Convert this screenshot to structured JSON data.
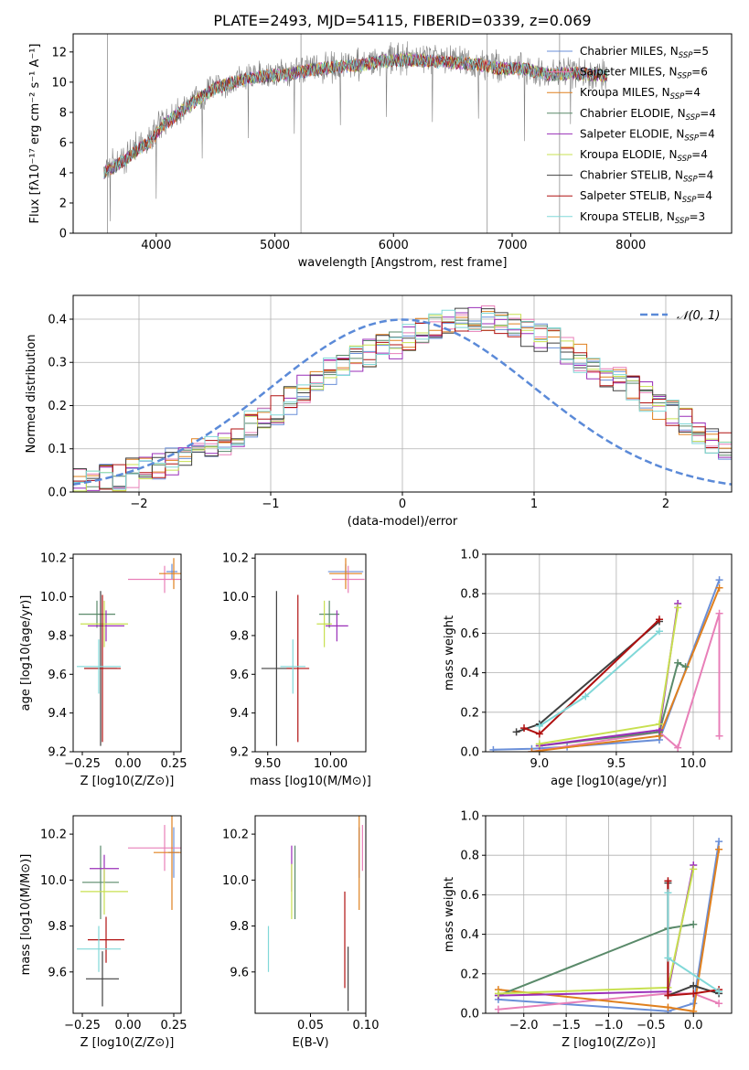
{
  "title": "PLATE=2493, MJD=54115, FIBERID=0339, z=0.069",
  "colors": {
    "chabrier_miles": "#6a8fd8",
    "salpeter_miles": "#e87fb8",
    "kroupa_miles": "#e0801e",
    "chabrier_elodie": "#5a8a6a",
    "salpeter_elodie": "#9a2fb8",
    "kroupa_elodie": "#c8e050",
    "chabrier_stelib": "#404040",
    "salpeter_stelib": "#b01010",
    "kroupa_stelib": "#80d8d8",
    "data": "#808080",
    "normal": "#5b8ad8"
  },
  "chart_data": [
    {
      "id": "spectrum",
      "type": "line",
      "xlabel": "wavelength [Angstrom, rest frame]",
      "ylabel": "Flux [fλ10⁻¹⁷ erg cm⁻² s⁻¹ A⁻¹]",
      "xlim": [
        3300,
        8850
      ],
      "ylim": [
        0,
        13.2
      ],
      "xticks": [
        4000,
        5000,
        6000,
        7000,
        8000
      ],
      "yticks": [
        0,
        2,
        4,
        6,
        8,
        10,
        12
      ],
      "legend_position": "right",
      "legend": [
        "Chabrier MILES, NSSP=5",
        "Salpeter MILES, NSSP=6",
        "Kroupa MILES, NSSP=4",
        "Chabrier ELODIE, NSSP=4",
        "Salpeter ELODIE, NSSP=4",
        "Kroupa ELODIE, NSSP=4",
        "Chabrier STELIB, NSSP=4",
        "Salpeter STELIB, NSSP=4",
        "Kroupa STELIB, NSSP=3"
      ],
      "data_curve": [
        [
          3560,
          4.2
        ],
        [
          3650,
          4.6
        ],
        [
          3750,
          5.0
        ],
        [
          3850,
          5.8
        ],
        [
          3950,
          6.2
        ],
        [
          4050,
          7.3
        ],
        [
          4200,
          8.1
        ],
        [
          4300,
          8.7
        ],
        [
          4500,
          9.7
        ],
        [
          4700,
          10.2
        ],
        [
          4900,
          10.5
        ],
        [
          5100,
          10.5
        ],
        [
          5300,
          10.9
        ],
        [
          5500,
          11.0
        ],
        [
          5700,
          11.2
        ],
        [
          5900,
          11.5
        ],
        [
          6100,
          11.6
        ],
        [
          6300,
          11.5
        ],
        [
          6500,
          11.4
        ],
        [
          6700,
          11.3
        ],
        [
          6900,
          11.0
        ],
        [
          7100,
          11.0
        ],
        [
          7300,
          10.6
        ],
        [
          7500,
          10.7
        ],
        [
          7700,
          10.6
        ],
        [
          7800,
          10.5
        ]
      ],
      "model_curve": [
        [
          3560,
          4.0
        ],
        [
          3650,
          4.4
        ],
        [
          3750,
          4.9
        ],
        [
          3850,
          5.6
        ],
        [
          3950,
          6.0
        ],
        [
          4050,
          7.1
        ],
        [
          4200,
          8.0
        ],
        [
          4300,
          8.6
        ],
        [
          4500,
          9.6
        ],
        [
          4700,
          10.1
        ],
        [
          4900,
          10.4
        ],
        [
          5100,
          10.5
        ],
        [
          5300,
          10.8
        ],
        [
          5500,
          11.0
        ],
        [
          5700,
          11.1
        ],
        [
          5900,
          11.4
        ],
        [
          6100,
          11.5
        ],
        [
          6300,
          11.4
        ],
        [
          6500,
          11.3
        ],
        [
          6700,
          11.2
        ],
        [
          6900,
          10.9
        ],
        [
          7100,
          10.9
        ],
        [
          7300,
          10.5
        ],
        [
          7500,
          10.6
        ],
        [
          7700,
          10.5
        ],
        [
          7800,
          10.4
        ]
      ]
    },
    {
      "id": "residuals",
      "type": "bar",
      "xlabel": "(data-model)/error",
      "ylabel": "Normed distribution",
      "xlim": [
        -2.5,
        2.5
      ],
      "ylim": [
        0,
        0.455
      ],
      "xticks": [
        -2,
        -1,
        0,
        1,
        2
      ],
      "yticks": [
        0.0,
        0.1,
        0.2,
        0.3,
        0.4
      ],
      "grid": true,
      "legend": [
        "𝒩(0, 1)"
      ],
      "bin_width": 0.1,
      "bin_start": -2.5,
      "hist_base": [
        0.02,
        0.025,
        0.03,
        0.035,
        0.045,
        0.05,
        0.06,
        0.07,
        0.08,
        0.09,
        0.105,
        0.12,
        0.14,
        0.16,
        0.175,
        0.19,
        0.21,
        0.24,
        0.26,
        0.275,
        0.29,
        0.305,
        0.32,
        0.33,
        0.34,
        0.355,
        0.37,
        0.385,
        0.39,
        0.395,
        0.4,
        0.4,
        0.39,
        0.38,
        0.37,
        0.36,
        0.345,
        0.33,
        0.31,
        0.29,
        0.275,
        0.255,
        0.24,
        0.22,
        0.2,
        0.18,
        0.16,
        0.14,
        0.12,
        0.105,
        0.09,
        0.075,
        0.065,
        0.055,
        0.045,
        0.04,
        0.035,
        0.03,
        0.025,
        0.022
      ]
    },
    {
      "id": "age-vs-Z",
      "type": "scatter",
      "xlabel": "Z [log10(Z/Z⊙)]",
      "ylabel": "age [log10(age/yr)]",
      "xlim": [
        -0.3,
        0.29
      ],
      "ylim": [
        9.2,
        10.22
      ],
      "xticks": [
        -0.25,
        0.0,
        0.25
      ],
      "yticks": [
        9.2,
        9.4,
        9.6,
        9.8,
        10.0,
        10.2
      ],
      "points": [
        {
          "s": "chabrier_miles",
          "x": 0.24,
          "y": 10.13,
          "ex": 0.03,
          "ey": 0.04
        },
        {
          "s": "salpeter_miles",
          "x": 0.2,
          "y": 10.09,
          "ex": 0.2,
          "ey": 0.07
        },
        {
          "s": "kroupa_miles",
          "x": 0.25,
          "y": 10.12,
          "ex": 0.08,
          "ey": 0.08
        },
        {
          "s": "chabrier_elodie",
          "x": -0.17,
          "y": 9.91,
          "ex": 0.1,
          "ey": 0.07
        },
        {
          "s": "salpeter_elodie",
          "x": -0.12,
          "y": 9.85,
          "ex": 0.1,
          "ey": 0.08
        },
        {
          "s": "kroupa_elodie",
          "x": -0.13,
          "y": 9.86,
          "ex": 0.13,
          "ey": 0.12
        },
        {
          "s": "chabrier_stelib",
          "x": -0.15,
          "y": 9.63,
          "ex": 0.09,
          "ey": 0.4
        },
        {
          "s": "salpeter_stelib",
          "x": -0.14,
          "y": 9.63,
          "ex": 0.1,
          "ey": 0.38
        },
        {
          "s": "kroupa_stelib",
          "x": -0.16,
          "y": 9.64,
          "ex": 0.12,
          "ey": 0.14
        }
      ]
    },
    {
      "id": "age-vs-mass",
      "type": "scatter",
      "xlabel": "mass [log10(M/M⊙)]",
      "ylabel": "",
      "xlim": [
        9.4,
        10.28
      ],
      "ylim": [
        9.2,
        10.22
      ],
      "xticks": [
        9.5,
        10.0
      ],
      "yticks": [
        9.2,
        9.4,
        9.6,
        9.8,
        10.0,
        10.2
      ],
      "points": [
        {
          "s": "chabrier_miles",
          "x": 10.12,
          "y": 10.13,
          "ex": 0.14,
          "ey": 0.04
        },
        {
          "s": "salpeter_miles",
          "x": 10.14,
          "y": 10.09,
          "ex": 0.13,
          "ey": 0.07
        },
        {
          "s": "kroupa_miles",
          "x": 10.12,
          "y": 10.12,
          "ex": 0.13,
          "ey": 0.08
        },
        {
          "s": "chabrier_elodie",
          "x": 9.99,
          "y": 9.91,
          "ex": 0.08,
          "ey": 0.07
        },
        {
          "s": "salpeter_elodie",
          "x": 10.05,
          "y": 9.85,
          "ex": 0.09,
          "ey": 0.08
        },
        {
          "s": "kroupa_elodie",
          "x": 9.95,
          "y": 9.86,
          "ex": 0.06,
          "ey": 0.12
        },
        {
          "s": "chabrier_stelib",
          "x": 9.57,
          "y": 9.63,
          "ex": 0.12,
          "ey": 0.4
        },
        {
          "s": "salpeter_stelib",
          "x": 9.74,
          "y": 9.63,
          "ex": 0.09,
          "ey": 0.38
        },
        {
          "s": "kroupa_stelib",
          "x": 9.7,
          "y": 9.64,
          "ex": 0.1,
          "ey": 0.14
        }
      ]
    },
    {
      "id": "weight-vs-age",
      "type": "line",
      "xlabel": "age [log10(age/yr)]",
      "ylabel": "mass weight",
      "xlim": [
        8.65,
        10.25
      ],
      "ylim": [
        0,
        1.0
      ],
      "xticks": [
        9.0,
        9.5,
        10.0
      ],
      "yticks": [
        0.0,
        0.2,
        0.4,
        0.6,
        0.8,
        1.0
      ],
      "grid": true,
      "series": [
        {
          "s": "chabrier_miles",
          "x": [
            8.7,
            8.95,
            9.18,
            9.78,
            10.17
          ],
          "y": [
            0.01,
            0.015,
            0.025,
            0.06,
            0.87
          ]
        },
        {
          "s": "salpeter_miles",
          "x": [
            8.95,
            9.78,
            9.9,
            10.17,
            10.17
          ],
          "y": [
            0.0,
            0.1,
            0.02,
            0.7,
            0.08
          ]
        },
        {
          "s": "kroupa_miles",
          "x": [
            8.95,
            9.78,
            10.17
          ],
          "y": [
            0.0,
            0.08,
            0.83
          ]
        },
        {
          "s": "chabrier_elodie",
          "x": [
            9.0,
            9.78,
            9.9,
            9.95
          ],
          "y": [
            0.03,
            0.1,
            0.45,
            0.43
          ]
        },
        {
          "s": "salpeter_elodie",
          "x": [
            9.0,
            9.78,
            9.9
          ],
          "y": [
            0.03,
            0.11,
            0.75
          ]
        },
        {
          "s": "kroupa_elodie",
          "x": [
            9.0,
            9.78,
            9.9
          ],
          "y": [
            0.04,
            0.14,
            0.73
          ]
        },
        {
          "s": "chabrier_stelib",
          "x": [
            8.85,
            9.0,
            9.78
          ],
          "y": [
            0.1,
            0.14,
            0.66
          ]
        },
        {
          "s": "salpeter_stelib",
          "x": [
            8.9,
            9.0,
            9.78
          ],
          "y": [
            0.12,
            0.09,
            0.67
          ]
        },
        {
          "s": "kroupa_stelib",
          "x": [
            9.0,
            9.3,
            9.78
          ],
          "y": [
            0.13,
            0.28,
            0.61
          ]
        }
      ]
    },
    {
      "id": "mass-vs-Z",
      "type": "scatter",
      "xlabel": "Z [log10(Z/Z⊙)]",
      "ylabel": "mass [log10(M/M⊙)]",
      "xlim": [
        -0.3,
        0.29
      ],
      "ylim": [
        9.42,
        10.28
      ],
      "xticks": [
        -0.25,
        0.0,
        0.25
      ],
      "yticks": [
        9.6,
        9.8,
        10.0,
        10.2
      ],
      "points": [
        {
          "s": "chabrier_miles",
          "x": 0.25,
          "y": 10.12,
          "ex": 0.03,
          "ey": 0.11
        },
        {
          "s": "salpeter_miles",
          "x": 0.2,
          "y": 10.14,
          "ex": 0.2,
          "ey": 0.1
        },
        {
          "s": "kroupa_miles",
          "x": 0.24,
          "y": 10.12,
          "ex": 0.1,
          "ey": 0.25
        },
        {
          "s": "chabrier_elodie",
          "x": -0.15,
          "y": 9.99,
          "ex": 0.1,
          "ey": 0.16
        },
        {
          "s": "salpeter_elodie",
          "x": -0.13,
          "y": 10.05,
          "ex": 0.08,
          "ey": 0.06
        },
        {
          "s": "kroupa_elodie",
          "x": -0.13,
          "y": 9.95,
          "ex": 0.13,
          "ey": 0.1
        },
        {
          "s": "chabrier_stelib",
          "x": -0.14,
          "y": 9.57,
          "ex": 0.09,
          "ey": 0.12
        },
        {
          "s": "salpeter_stelib",
          "x": -0.12,
          "y": 9.74,
          "ex": 0.1,
          "ey": 0.1
        },
        {
          "s": "kroupa_stelib",
          "x": -0.16,
          "y": 9.7,
          "ex": 0.12,
          "ey": 0.1
        }
      ]
    },
    {
      "id": "mass-vs-ebv",
      "type": "scatter",
      "xlabel": "E(B-V)",
      "ylabel": "",
      "xlim": [
        0.0,
        0.1
      ],
      "ylim": [
        9.42,
        10.28
      ],
      "xticks": [
        0.05,
        0.1
      ],
      "yticks": [
        9.6,
        9.8,
        10.0,
        10.2
      ],
      "points": [
        {
          "s": "chabrier_miles",
          "x": 0.094,
          "y": 10.12,
          "ex": 0.0,
          "ey": 0.11
        },
        {
          "s": "salpeter_miles",
          "x": 0.097,
          "y": 10.14,
          "ex": 0.0,
          "ey": 0.1
        },
        {
          "s": "kroupa_miles",
          "x": 0.094,
          "y": 10.12,
          "ex": 0.0,
          "ey": 0.25
        },
        {
          "s": "chabrier_elodie",
          "x": 0.036,
          "y": 9.99,
          "ex": 0.0,
          "ey": 0.16
        },
        {
          "s": "salpeter_elodie",
          "x": 0.033,
          "y": 10.05,
          "ex": 0.0,
          "ey": 0.1
        },
        {
          "s": "kroupa_elodie",
          "x": 0.033,
          "y": 9.95,
          "ex": 0.0,
          "ey": 0.12
        },
        {
          "s": "chabrier_stelib",
          "x": 0.084,
          "y": 9.57,
          "ex": 0.0,
          "ey": 0.14
        },
        {
          "s": "salpeter_stelib",
          "x": 0.081,
          "y": 9.74,
          "ex": 0.0,
          "ey": 0.21
        },
        {
          "s": "kroupa_stelib",
          "x": 0.012,
          "y": 9.7,
          "ex": 0.0,
          "ey": 0.1
        }
      ]
    },
    {
      "id": "weight-vs-Z",
      "type": "line",
      "xlabel": "Z [log10(Z/Z⊙)]",
      "ylabel": "mass weight",
      "xlim": [
        -2.45,
        0.45
      ],
      "ylim": [
        0,
        1.0
      ],
      "xticks": [
        -2.0,
        -1.5,
        -1.0,
        -0.5,
        0.0
      ],
      "yticks": [
        0.0,
        0.2,
        0.4,
        0.6,
        0.8,
        1.0
      ],
      "grid": true,
      "series": [
        {
          "s": "chabrier_miles",
          "x": [
            -2.3,
            -0.3,
            0.0,
            0.3
          ],
          "y": [
            0.07,
            0.01,
            0.05,
            0.87
          ]
        },
        {
          "s": "salpeter_miles",
          "x": [
            -2.3,
            -0.3,
            0.0,
            0.3
          ],
          "y": [
            0.02,
            0.1,
            0.1,
            0.05
          ]
        },
        {
          "s": "kroupa_miles",
          "x": [
            -2.3,
            -0.3,
            0.0,
            0.3
          ],
          "y": [
            0.12,
            0.03,
            0.01,
            0.83
          ]
        },
        {
          "s": "chabrier_elodie",
          "x": [
            -2.3,
            -0.3,
            0.0
          ],
          "y": [
            0.09,
            0.43,
            0.45
          ]
        },
        {
          "s": "salpeter_elodie",
          "x": [
            -2.3,
            -0.3,
            0.0
          ],
          "y": [
            0.09,
            0.11,
            0.75
          ]
        },
        {
          "s": "kroupa_elodie",
          "x": [
            -2.3,
            -0.3,
            0.0
          ],
          "y": [
            0.1,
            0.13,
            0.73
          ]
        },
        {
          "s": "chabrier_stelib",
          "x": [
            -0.3,
            -0.3,
            0.0,
            0.3
          ],
          "y": [
            0.66,
            0.09,
            0.14,
            0.1
          ]
        },
        {
          "s": "salpeter_stelib",
          "x": [
            -0.3,
            -0.3,
            0.0,
            0.3
          ],
          "y": [
            0.67,
            0.09,
            0.1,
            0.12
          ]
        },
        {
          "s": "kroupa_stelib",
          "x": [
            -0.3,
            -0.3,
            0.3
          ],
          "y": [
            0.61,
            0.28,
            0.11
          ]
        }
      ]
    }
  ]
}
